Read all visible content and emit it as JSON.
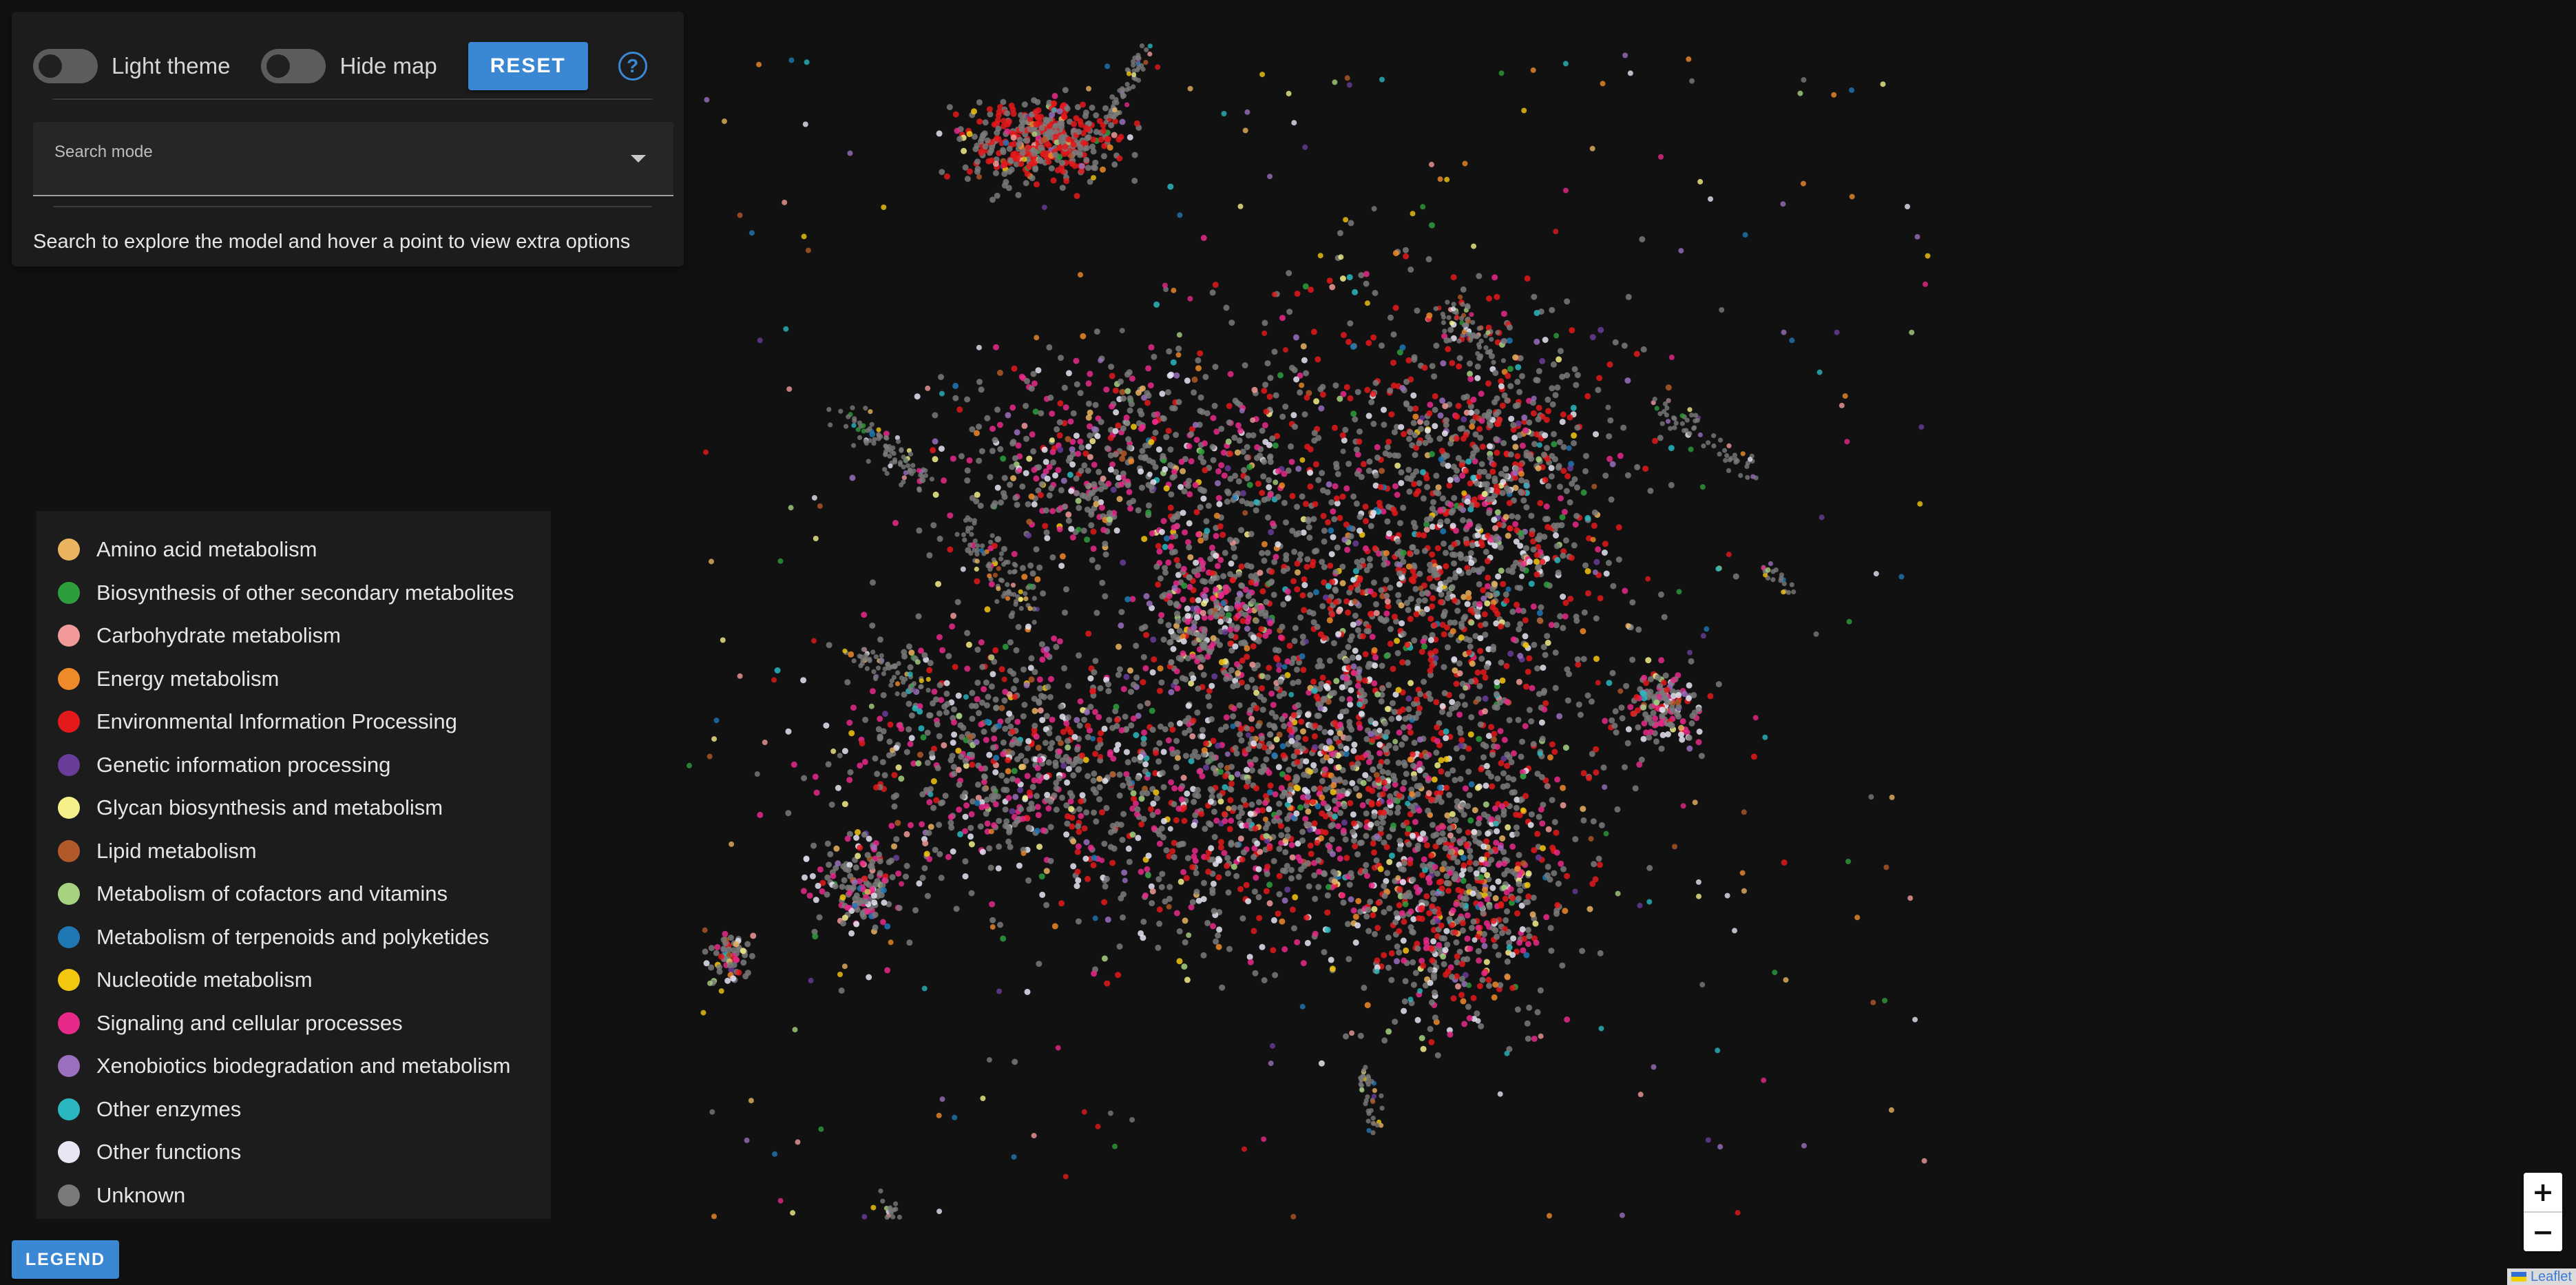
{
  "controls": {
    "light_theme_label": "Light theme",
    "hide_map_label": "Hide map",
    "reset_label": "RESET",
    "help_glyph": "?",
    "search_mode_label": "Search mode",
    "search_value": "",
    "hint": "Search to explore the model and hover a point to view extra options"
  },
  "legend": {
    "button_label": "LEGEND",
    "items": [
      {
        "label": "Amino acid metabolism",
        "color": "#e9b35f"
      },
      {
        "label": "Biosynthesis of other secondary metabolites",
        "color": "#2e9e3c"
      },
      {
        "label": "Carbohydrate metabolism",
        "color": "#f19a99"
      },
      {
        "label": "Energy metabolism",
        "color": "#ef8a2a"
      },
      {
        "label": "Environmental Information Processing",
        "color": "#e3191c"
      },
      {
        "label": "Genetic information processing",
        "color": "#6a3d9a"
      },
      {
        "label": "Glycan biosynthesis and metabolism",
        "color": "#f5f08a"
      },
      {
        "label": "Lipid metabolism",
        "color": "#b15928"
      },
      {
        "label": "Metabolism of cofactors and vitamins",
        "color": "#a6d280"
      },
      {
        "label": "Metabolism of terpenoids and polyketides",
        "color": "#1f78b4"
      },
      {
        "label": "Nucleotide metabolism",
        "color": "#f3c70f"
      },
      {
        "label": "Signaling and cellular processes",
        "color": "#e7298a"
      },
      {
        "label": "Xenobiotics biodegradation and metabolism",
        "color": "#9a6fbd"
      },
      {
        "label": "Other enzymes",
        "color": "#2ab7bf"
      },
      {
        "label": "Other functions",
        "color": "#e6e6f5"
      },
      {
        "label": "Unknown",
        "color": "#7a7a7a"
      }
    ]
  },
  "zoom": {
    "in": "+",
    "out": "−"
  },
  "attribution": "Leaflet",
  "icons": {
    "help": "help-circle-icon",
    "dropdown": "chevron-down-icon",
    "flag": "ukraine-flag-icon"
  }
}
